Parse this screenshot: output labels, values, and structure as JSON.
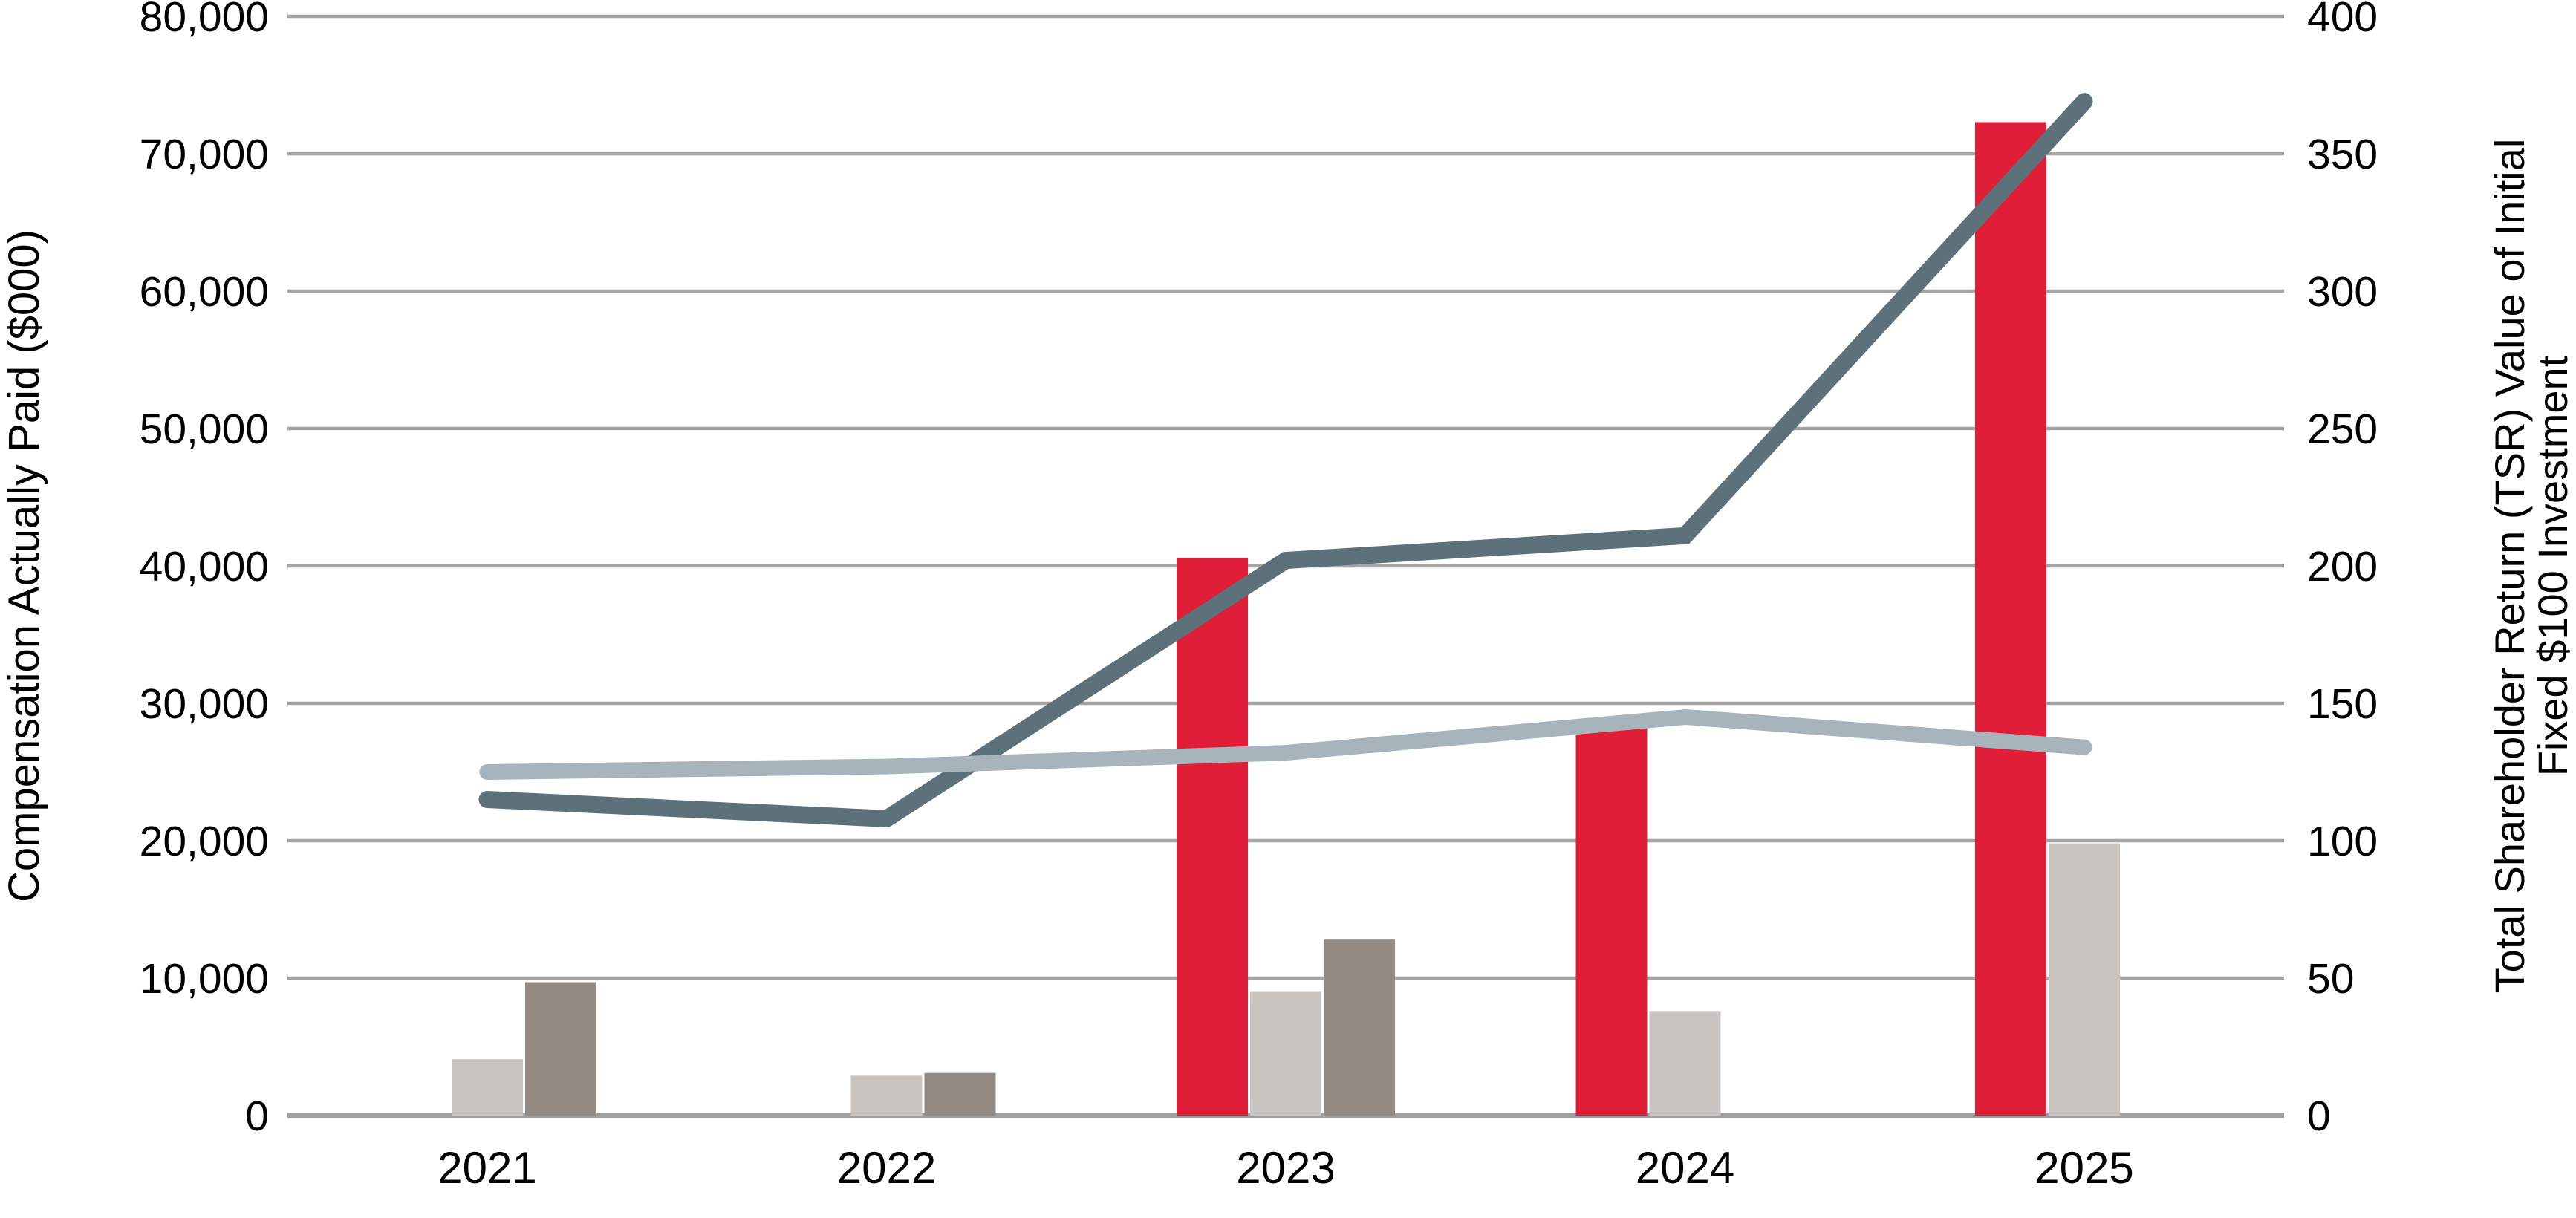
{
  "chart_data": {
    "type": "combo-bar-line",
    "title": "",
    "legend": "none",
    "grid": true,
    "categories": [
      "2021",
      "2022",
      "2023",
      "2024",
      "2025"
    ],
    "left_axis": {
      "label": "Compensation Actually Paid ($000)",
      "min": 0,
      "max": 80000,
      "step": 10000,
      "tick_labels": [
        "0",
        "10,000",
        "20,000",
        "30,000",
        "40,000",
        "50,000",
        "60,000",
        "70,000",
        "80,000"
      ]
    },
    "right_axis": {
      "label_line1": "Total Shareholder Return (TSR) Value of Initial",
      "label_line2": "Fixed $100 Investment",
      "min": 0,
      "max": 400,
      "step": 50,
      "tick_labels": [
        "0",
        "50",
        "100",
        "150",
        "200",
        "250",
        "300",
        "350",
        "400"
      ]
    },
    "bar_series": [
      {
        "name": "red-bar-series",
        "color": "#E01E37",
        "axis": "left",
        "values": [
          0,
          0,
          40600,
          28200,
          72300
        ]
      },
      {
        "name": "light-gray-bar-series",
        "color": "#CAC4C0",
        "axis": "left",
        "values": [
          4100,
          2900,
          9000,
          7600,
          19800
        ]
      },
      {
        "name": "taupe-bar-series",
        "color": "#938B83",
        "axis": "left",
        "values": [
          9700,
          3100,
          12800,
          0,
          0
        ]
      }
    ],
    "line_series": [
      {
        "name": "dark-slate-tsr-line",
        "color": "#5D717B",
        "axis": "right",
        "stroke_width": 23,
        "values": [
          115,
          108,
          202,
          211,
          369
        ]
      },
      {
        "name": "light-bluegray-tsr-line",
        "color": "#A8B4BC",
        "axis": "right",
        "stroke_width": 21,
        "values": [
          125,
          127,
          132,
          145,
          134
        ]
      }
    ],
    "colors": {
      "gridline": "#A5A5A5",
      "axis_baseline": "#9E9E9E",
      "background": "#FFFFFF",
      "text": "#000000"
    }
  }
}
